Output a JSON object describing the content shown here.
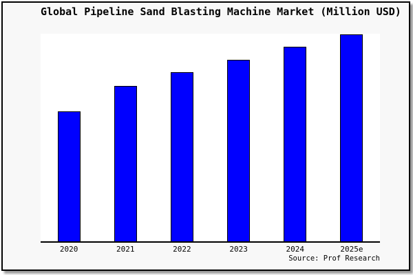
{
  "window": {
    "title": "Global Pipeline Sand Blasting Machine Market (Million USD)"
  },
  "source": {
    "label": "Source: Prof Research"
  },
  "colors": {
    "bar_fill": "#0000ff",
    "bar_border": "#000000",
    "card_bg": "#f8f8f8",
    "plot_bg": "#ffffff",
    "frame": "#000000",
    "shadow": "#999999",
    "text": "#000000"
  },
  "chart_data": {
    "type": "bar",
    "title": "Global Pipeline Sand Blasting Machine Market (Million USD)",
    "categories": [
      "2020",
      "2021",
      "2022",
      "2023",
      "2024",
      "2025e"
    ],
    "values": [
      62.8,
      75.1,
      81.7,
      87.7,
      94.0,
      100.0
    ],
    "values_note": "no y-axis labels or data labels shown; values are relative bar heights with 2025e = 100",
    "xlabel": "",
    "ylabel": "",
    "ylim": [
      0,
      100.3
    ],
    "grid": false,
    "legend": false,
    "spines": "bottom-only",
    "annotation": "Source: Prof Research"
  }
}
